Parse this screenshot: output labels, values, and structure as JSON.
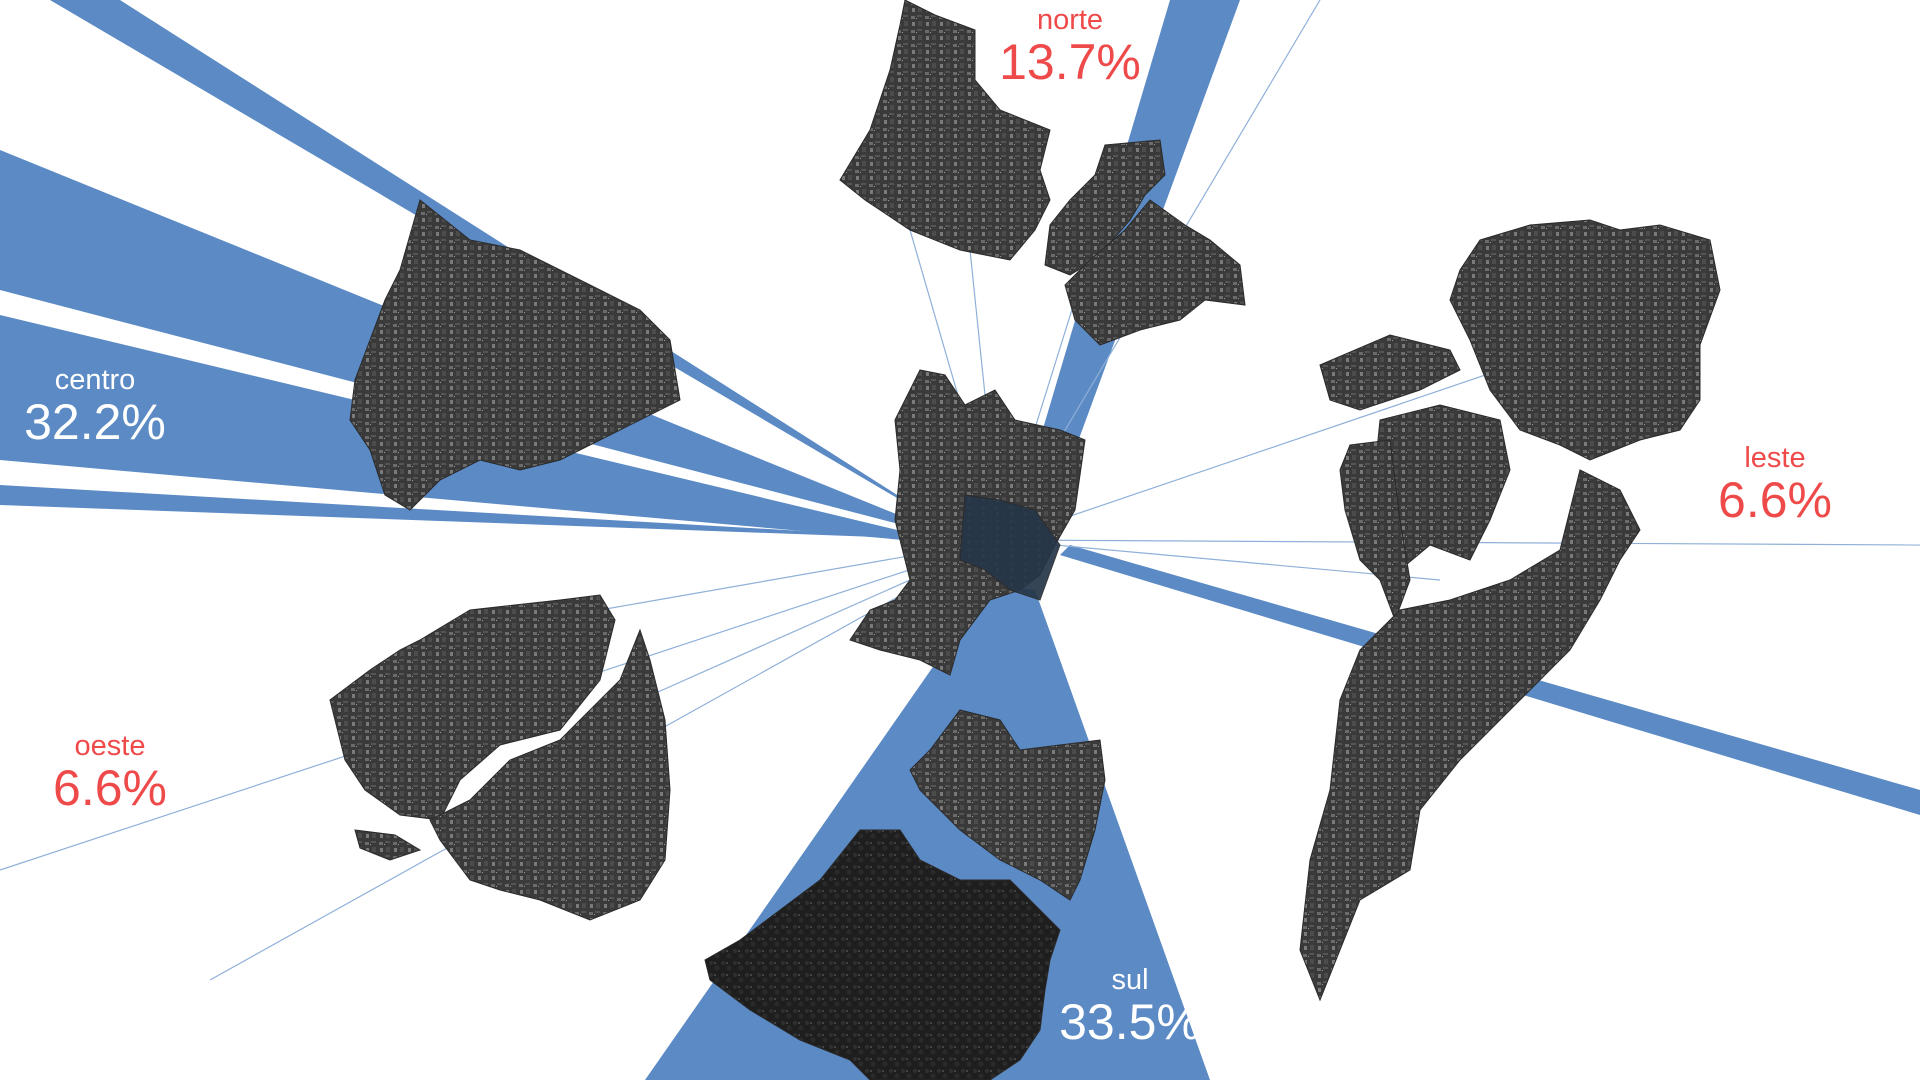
{
  "colors": {
    "flow_band": "#5b8ac5",
    "flow_line": "#8fb0d8",
    "district_fill": "#3b3b3b",
    "district_texture": "#6a6a6a",
    "center_fill": "#263648",
    "accent_red": "#ef4a4a",
    "label_white": "#ffffff"
  },
  "regions": {
    "norte": {
      "name": "norte",
      "value": "13.7%",
      "color": "#ef4a4a"
    },
    "centro": {
      "name": "centro",
      "value": "32.2%",
      "color": "#ffffff"
    },
    "leste": {
      "name": "leste",
      "value": "6.6%",
      "color": "#ef4a4a"
    },
    "oeste": {
      "name": "oeste",
      "value": "6.6%",
      "color": "#ef4a4a"
    },
    "sul": {
      "name": "sul",
      "value": "33.5%",
      "color": "#ffffff"
    }
  }
}
